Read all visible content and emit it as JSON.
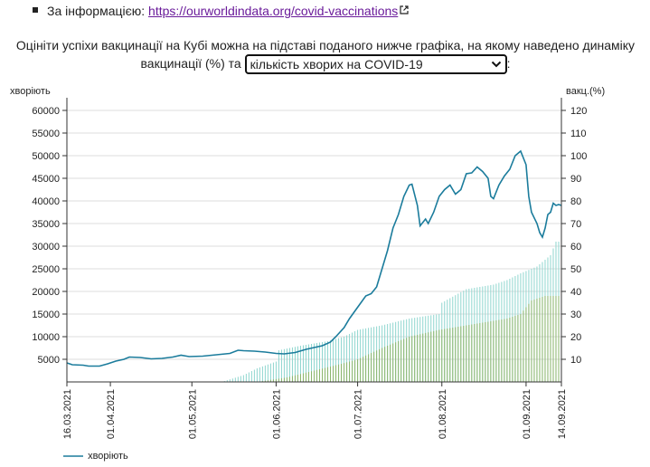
{
  "info": {
    "prefix": "За інформацією:",
    "link_text": "https://ourworldindata.org/covid-vaccinations",
    "icon": "external-link-icon"
  },
  "paragraph": {
    "before": "Оцініти успіхи вакцинації на Кубі можна на підставі поданого нижче графіка, на якому наведено динаміку вакцинації (%) та",
    "after": ":"
  },
  "select": {
    "value": "кількість хворих на COVID-19",
    "icon": "chevron-down-icon"
  },
  "colors": {
    "cases_line": "#1b7c9c",
    "vacc_total_bars": "#8fd6cf",
    "vacc_full_bars": "#8bb56b",
    "grid": "#dddddd"
  },
  "chart_data": {
    "type": "line",
    "ylabel_left": "хворіють",
    "ylabel_right": "вакц.(%)",
    "y_left_ticks": [
      "5000",
      "10000",
      "15000",
      "20000",
      "25000",
      "30000",
      "35000",
      "40000",
      "45000",
      "50000",
      "55000",
      "60000"
    ],
    "y_right_ticks": [
      "10",
      "20",
      "30",
      "40",
      "50",
      "60",
      "70",
      "80",
      "90",
      "100",
      "110",
      "120"
    ],
    "ylim_left": [
      0,
      60000
    ],
    "ylim_right": [
      0,
      120
    ],
    "x_start": "2021-03-16",
    "x_end": "2021-09-14",
    "x_ticks": [
      {
        "label": "16.03.2021",
        "date": "2021-03-16"
      },
      {
        "label": "01.04.2021",
        "date": "2021-04-01"
      },
      {
        "label": "01.05.2021",
        "date": "2021-05-01"
      },
      {
        "label": "01.06.2021",
        "date": "2021-06-01"
      },
      {
        "label": "01.07.2021",
        "date": "2021-07-01"
      },
      {
        "label": "01.08.2021",
        "date": "2021-08-01"
      },
      {
        "label": "01.09.2021",
        "date": "2021-09-01"
      },
      {
        "label": "14.09.2021",
        "date": "2021-09-14"
      }
    ],
    "grid": true,
    "legend_position": "bottom-left",
    "series": [
      {
        "name": "хворіють",
        "type": "line",
        "axis": "left",
        "points": [
          [
            "2021-03-16",
            4200
          ],
          [
            "2021-03-18",
            3800
          ],
          [
            "2021-03-22",
            3700
          ],
          [
            "2021-03-24",
            3500
          ],
          [
            "2021-03-28",
            3500
          ],
          [
            "2021-03-31",
            4000
          ],
          [
            "2021-04-03",
            4600
          ],
          [
            "2021-04-06",
            5000
          ],
          [
            "2021-04-08",
            5500
          ],
          [
            "2021-04-12",
            5400
          ],
          [
            "2021-04-16",
            5100
          ],
          [
            "2021-04-20",
            5200
          ],
          [
            "2021-04-24",
            5500
          ],
          [
            "2021-04-27",
            5900
          ],
          [
            "2021-04-30",
            5600
          ],
          [
            "2021-05-05",
            5700
          ],
          [
            "2021-05-10",
            6000
          ],
          [
            "2021-05-15",
            6300
          ],
          [
            "2021-05-18",
            7000
          ],
          [
            "2021-05-20",
            6900
          ],
          [
            "2021-05-24",
            6800
          ],
          [
            "2021-05-28",
            6600
          ],
          [
            "2021-06-01",
            6300
          ],
          [
            "2021-06-04",
            6200
          ],
          [
            "2021-06-08",
            6500
          ],
          [
            "2021-06-12",
            7200
          ],
          [
            "2021-06-15",
            7600
          ],
          [
            "2021-06-18",
            8000
          ],
          [
            "2021-06-21",
            8800
          ],
          [
            "2021-06-23",
            10000
          ],
          [
            "2021-06-26",
            12000
          ],
          [
            "2021-06-28",
            14000
          ],
          [
            "2021-07-01",
            16500
          ],
          [
            "2021-07-04",
            19000
          ],
          [
            "2021-07-06",
            19500
          ],
          [
            "2021-07-08",
            21000
          ],
          [
            "2021-07-10",
            25000
          ],
          [
            "2021-07-12",
            29000
          ],
          [
            "2021-07-14",
            34000
          ],
          [
            "2021-07-16",
            37000
          ],
          [
            "2021-07-18",
            41000
          ],
          [
            "2021-07-20",
            43500
          ],
          [
            "2021-07-21",
            43700
          ],
          [
            "2021-07-23",
            39000
          ],
          [
            "2021-07-24",
            34500
          ],
          [
            "2021-07-26",
            36000
          ],
          [
            "2021-07-27",
            35000
          ],
          [
            "2021-07-29",
            37500
          ],
          [
            "2021-07-31",
            41000
          ],
          [
            "2021-08-02",
            42500
          ],
          [
            "2021-08-04",
            43500
          ],
          [
            "2021-08-06",
            41500
          ],
          [
            "2021-08-08",
            42500
          ],
          [
            "2021-08-10",
            46000
          ],
          [
            "2021-08-12",
            46200
          ],
          [
            "2021-08-14",
            47500
          ],
          [
            "2021-08-16",
            46500
          ],
          [
            "2021-08-18",
            45000
          ],
          [
            "2021-08-19",
            41000
          ],
          [
            "2021-08-20",
            40500
          ],
          [
            "2021-08-22",
            43500
          ],
          [
            "2021-08-24",
            45500
          ],
          [
            "2021-08-26",
            47000
          ],
          [
            "2021-08-28",
            50000
          ],
          [
            "2021-08-30",
            51000
          ],
          [
            "2021-09-01",
            48000
          ],
          [
            "2021-09-02",
            41000
          ],
          [
            "2021-09-03",
            37500
          ],
          [
            "2021-09-05",
            35000
          ],
          [
            "2021-09-06",
            33000
          ],
          [
            "2021-09-07",
            32000
          ],
          [
            "2021-09-08",
            34000
          ],
          [
            "2021-09-09",
            37000
          ],
          [
            "2021-09-10",
            37500
          ],
          [
            "2021-09-11",
            39500
          ],
          [
            "2021-09-12",
            39000
          ],
          [
            "2021-09-13",
            39200
          ],
          [
            "2021-09-14",
            39000
          ]
        ]
      },
      {
        "type": "bar",
        "axis": "right",
        "role": "vaccinated_total",
        "points": [
          [
            "2021-05-12",
            0
          ],
          [
            "2021-05-20",
            3
          ],
          [
            "2021-05-25",
            6
          ],
          [
            "2021-06-01",
            9
          ],
          [
            "2021-06-02",
            14
          ],
          [
            "2021-06-10",
            16
          ],
          [
            "2021-06-20",
            18
          ],
          [
            "2021-06-26",
            20
          ],
          [
            "2021-07-01",
            23
          ],
          [
            "2021-07-10",
            25
          ],
          [
            "2021-07-20",
            28
          ],
          [
            "2021-07-31",
            30
          ],
          [
            "2021-08-01",
            35
          ],
          [
            "2021-08-10",
            41
          ],
          [
            "2021-08-20",
            43
          ],
          [
            "2021-08-25",
            45
          ],
          [
            "2021-08-30",
            48
          ],
          [
            "2021-09-05",
            51
          ],
          [
            "2021-09-10",
            56
          ],
          [
            "2021-09-12",
            62
          ],
          [
            "2021-09-14",
            62
          ]
        ]
      },
      {
        "type": "bar",
        "axis": "right",
        "role": "vaccinated_full",
        "points": [
          [
            "2021-05-25",
            0
          ],
          [
            "2021-06-05",
            2
          ],
          [
            "2021-06-15",
            5
          ],
          [
            "2021-06-25",
            8
          ],
          [
            "2021-07-01",
            10
          ],
          [
            "2021-07-10",
            15
          ],
          [
            "2021-07-20",
            20
          ],
          [
            "2021-07-31",
            23
          ],
          [
            "2021-08-10",
            25
          ],
          [
            "2021-08-20",
            27
          ],
          [
            "2021-08-25",
            28
          ],
          [
            "2021-08-30",
            30
          ],
          [
            "2021-09-03",
            36
          ],
          [
            "2021-09-08",
            38
          ],
          [
            "2021-09-14",
            38
          ]
        ]
      }
    ]
  }
}
